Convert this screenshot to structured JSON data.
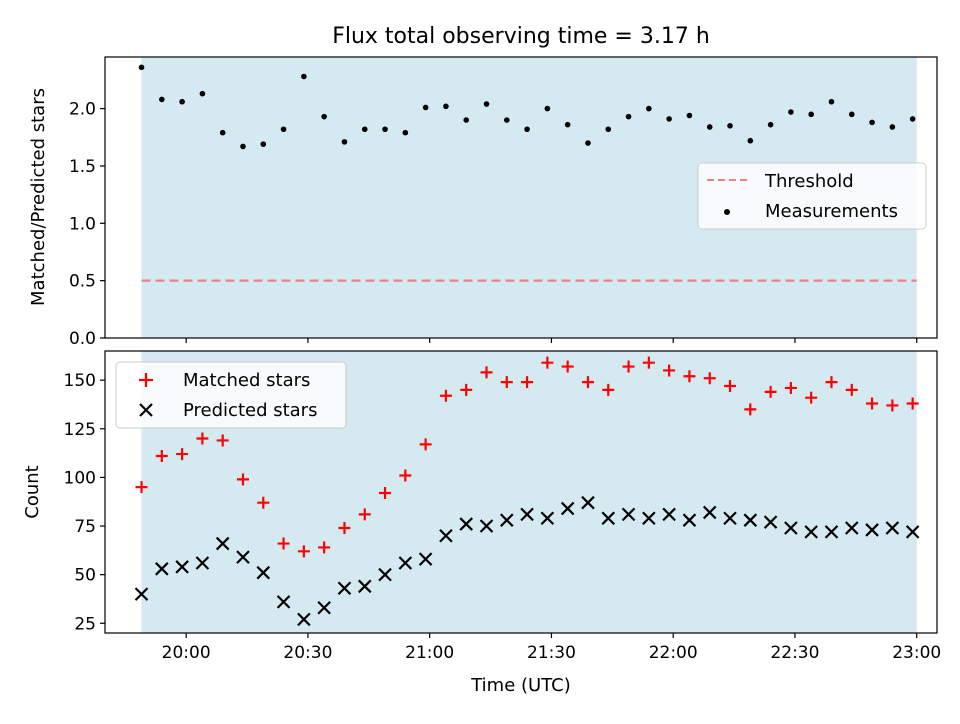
{
  "figure": {
    "title": "Flux total observing time = 3.17 h"
  },
  "chart_data": [
    {
      "type": "scatter",
      "ylabel": "Matched/Predicted stars",
      "ylim": [
        0,
        2.45
      ],
      "yticks": [
        0,
        0.5,
        1.0,
        1.5,
        2.0
      ],
      "ytick_labels": [
        "0.0",
        "0.5",
        "1.0",
        "1.5",
        "2.0"
      ],
      "x_range": [
        "19:40",
        "23:05"
      ],
      "shaded_span": [
        "19:49",
        "23:00"
      ],
      "shade_color": "#d4e9f0",
      "threshold": 0.5,
      "threshold_color": "#f08080",
      "legend": {
        "position": "center-right",
        "entries": [
          "Threshold",
          "Measurements"
        ]
      },
      "series": [
        {
          "name": "Measurements",
          "x": [
            "19:49",
            "19:54",
            "19:59",
            "20:04",
            "20:09",
            "20:14",
            "20:19",
            "20:24",
            "20:29",
            "20:34",
            "20:39",
            "20:44",
            "20:49",
            "20:54",
            "20:59",
            "21:04",
            "21:09",
            "21:14",
            "21:19",
            "21:24",
            "21:29",
            "21:34",
            "21:39",
            "21:44",
            "21:49",
            "21:54",
            "21:59",
            "22:04",
            "22:09",
            "22:14",
            "22:19",
            "22:24",
            "22:29",
            "22:34",
            "22:39",
            "22:44",
            "22:49",
            "22:54",
            "22:59"
          ],
          "y": [
            2.36,
            2.08,
            2.06,
            2.13,
            1.79,
            1.67,
            1.69,
            1.82,
            2.28,
            1.93,
            1.71,
            1.82,
            1.82,
            1.79,
            2.01,
            2.02,
            1.9,
            2.04,
            1.9,
            1.82,
            2.0,
            1.86,
            1.7,
            1.82,
            1.93,
            2.0,
            1.91,
            1.94,
            1.84,
            1.85,
            1.72,
            1.86,
            1.97,
            1.95,
            2.06,
            1.95,
            1.88,
            1.84,
            1.91
          ]
        }
      ]
    },
    {
      "type": "scatter",
      "xlabel": "Time (UTC)",
      "ylabel": "Count",
      "ylim": [
        20,
        165
      ],
      "yticks": [
        25,
        50,
        75,
        100,
        125,
        150
      ],
      "ytick_labels": [
        "25",
        "50",
        "75",
        "100",
        "125",
        "150"
      ],
      "x_range": [
        "19:40",
        "23:05"
      ],
      "xticks": [
        "20:00",
        "20:30",
        "21:00",
        "21:30",
        "22:00",
        "22:30",
        "23:00"
      ],
      "shaded_span": [
        "19:49",
        "23:00"
      ],
      "shade_color": "#d4e9f0",
      "legend": {
        "position": "top-left",
        "entries": [
          "Matched stars",
          "Predicted stars"
        ]
      },
      "series": [
        {
          "name": "Matched stars",
          "marker": "plus",
          "color": "#ff0000",
          "x": [
            "19:49",
            "19:54",
            "19:59",
            "20:04",
            "20:09",
            "20:14",
            "20:19",
            "20:24",
            "20:29",
            "20:34",
            "20:39",
            "20:44",
            "20:49",
            "20:54",
            "20:59",
            "21:04",
            "21:09",
            "21:14",
            "21:19",
            "21:24",
            "21:29",
            "21:34",
            "21:39",
            "21:44",
            "21:49",
            "21:54",
            "21:59",
            "22:04",
            "22:09",
            "22:14",
            "22:19",
            "22:24",
            "22:29",
            "22:34",
            "22:39",
            "22:44",
            "22:49",
            "22:54",
            "22:59"
          ],
          "y": [
            95,
            111,
            112,
            120,
            119,
            99,
            87,
            66,
            62,
            64,
            74,
            81,
            92,
            101,
            117,
            142,
            145,
            154,
            149,
            149,
            159,
            157,
            149,
            145,
            157,
            159,
            155,
            152,
            151,
            147,
            135,
            144,
            146,
            141,
            149,
            145,
            138,
            137,
            138
          ]
        },
        {
          "name": "Predicted stars",
          "marker": "x",
          "color": "#000000",
          "x": [
            "19:49",
            "19:54",
            "19:59",
            "20:04",
            "20:09",
            "20:14",
            "20:19",
            "20:24",
            "20:29",
            "20:34",
            "20:39",
            "20:44",
            "20:49",
            "20:54",
            "20:59",
            "21:04",
            "21:09",
            "21:14",
            "21:19",
            "21:24",
            "21:29",
            "21:34",
            "21:39",
            "21:44",
            "21:49",
            "21:54",
            "21:59",
            "22:04",
            "22:09",
            "22:14",
            "22:19",
            "22:24",
            "22:29",
            "22:34",
            "22:39",
            "22:44",
            "22:49",
            "22:54",
            "22:59"
          ],
          "y": [
            40,
            53,
            54,
            56,
            66,
            59,
            51,
            36,
            27,
            33,
            43,
            44,
            50,
            56,
            58,
            70,
            76,
            75,
            78,
            81,
            79,
            84,
            87,
            79,
            81,
            79,
            81,
            78,
            82,
            79,
            78,
            77,
            74,
            72,
            72,
            74,
            73,
            74,
            72
          ]
        }
      ]
    }
  ]
}
